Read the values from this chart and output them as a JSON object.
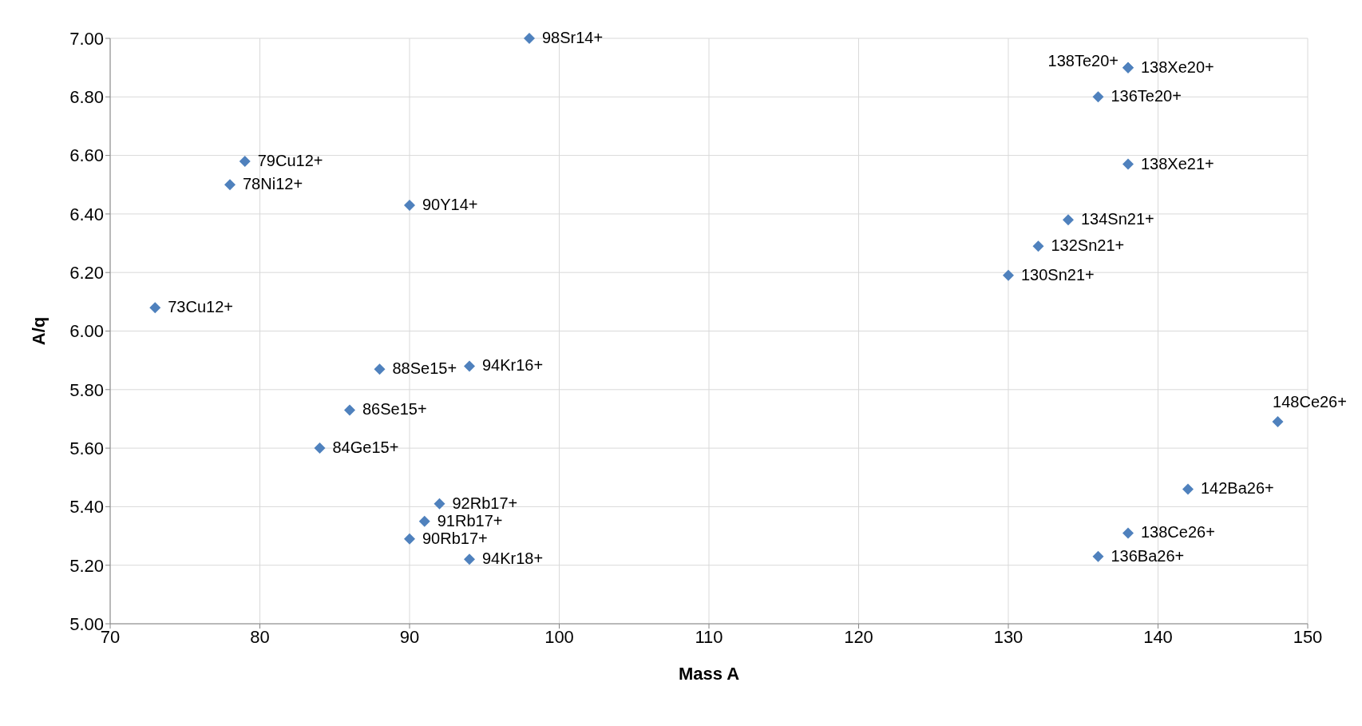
{
  "chart_data": {
    "type": "scatter",
    "xlabel": "Mass A",
    "ylabel": "A/q",
    "x": [
      98,
      138,
      138,
      136,
      138,
      134,
      132,
      130,
      148,
      142,
      138,
      136,
      79,
      78,
      90,
      73,
      88,
      94,
      86,
      84,
      92,
      91,
      90,
      94
    ],
    "values": [
      7.0,
      6.9,
      6.9,
      6.8,
      6.57,
      6.38,
      6.29,
      6.19,
      5.69,
      5.46,
      5.31,
      5.23,
      6.58,
      6.5,
      6.43,
      6.08,
      5.87,
      5.88,
      5.73,
      5.6,
      5.41,
      5.35,
      5.29,
      5.22
    ],
    "color": "#4f81bd",
    "marker": "diamond",
    "grid": true,
    "xlim": [
      70,
      150
    ],
    "xticks": [
      70,
      80,
      90,
      100,
      110,
      120,
      130,
      140,
      150
    ],
    "ylim": [
      5,
      7
    ],
    "yticks": [
      {
        "value": 5,
        "label": "5.00"
      },
      {
        "value": 5.2,
        "label": "5.20"
      },
      {
        "value": 5.4,
        "label": "5.40"
      },
      {
        "value": 5.6,
        "label": "5.60"
      },
      {
        "value": 5.8,
        "label": "5.80"
      },
      {
        "value": 6,
        "label": "6.00"
      },
      {
        "value": 6.2,
        "label": "6.20"
      },
      {
        "value": 6.4,
        "label": "6.40"
      },
      {
        "value": 6.6,
        "label": "6.60"
      },
      {
        "value": 6.8,
        "label": "6.80"
      },
      {
        "value": 7,
        "label": "7.00"
      }
    ],
    "annotations": [
      {
        "text": "98Sr14+",
        "x": 98,
        "y": 7.0
      },
      {
        "text": "138Xe20+",
        "x": 138,
        "y": 6.9
      },
      {
        "text": "138Te20+",
        "x": 138,
        "y": 6.9
      },
      {
        "text": "136Te20+",
        "x": 136,
        "y": 6.8
      },
      {
        "text": "138Xe21+",
        "x": 138,
        "y": 6.57
      },
      {
        "text": "134Sn21+",
        "x": 134,
        "y": 6.38
      },
      {
        "text": "132Sn21+",
        "x": 132,
        "y": 6.29
      },
      {
        "text": "130Sn21+",
        "x": 130,
        "y": 6.19
      },
      {
        "text": "148Ce26+",
        "x": 148,
        "y": 5.69
      },
      {
        "text": "142Ba26+",
        "x": 142,
        "y": 5.46
      },
      {
        "text": "138Ce26+",
        "x": 138,
        "y": 5.31
      },
      {
        "text": "136Ba26+",
        "x": 136,
        "y": 5.23
      },
      {
        "text": "79Cu12+",
        "x": 79,
        "y": 6.58
      },
      {
        "text": "78Ni12+",
        "x": 78,
        "y": 6.5
      },
      {
        "text": "90Y14+",
        "x": 90,
        "y": 6.43
      },
      {
        "text": "73Cu12+",
        "x": 73,
        "y": 6.08
      },
      {
        "text": "88Se15+",
        "x": 88,
        "y": 5.87
      },
      {
        "text": "94Kr16+",
        "x": 94,
        "y": 5.88
      },
      {
        "text": "86Se15+",
        "x": 86,
        "y": 5.73
      },
      {
        "text": "84Ge15+",
        "x": 84,
        "y": 5.6
      },
      {
        "text": "92Rb17+",
        "x": 92,
        "y": 5.41
      },
      {
        "text": "91Rb17+",
        "x": 91,
        "y": 5.35
      },
      {
        "text": "90Rb17+",
        "x": 90,
        "y": 5.29
      },
      {
        "text": "94Kr18+",
        "x": 94,
        "y": 5.22
      }
    ]
  }
}
